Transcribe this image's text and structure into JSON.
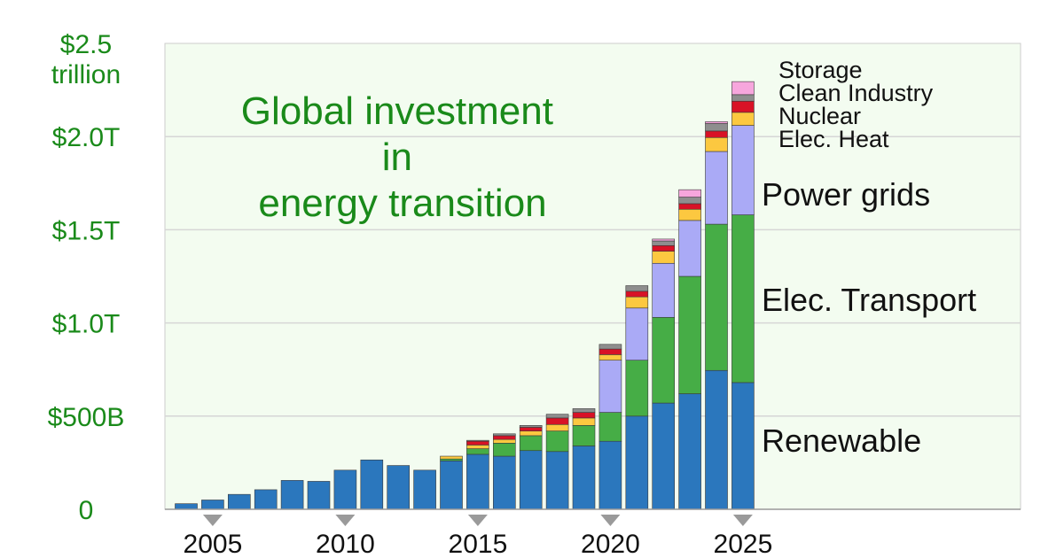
{
  "chart_data": {
    "type": "bar",
    "stacked": true,
    "title_lines": [
      "Global investment",
      "in",
      "energy transition"
    ],
    "ylabel": "",
    "xlabel": "",
    "ylim": [
      0,
      2500
    ],
    "y_unit": "billion USD",
    "grid": true,
    "y_ticks": [
      {
        "value": 0,
        "lines": [
          "0"
        ]
      },
      {
        "value": 500,
        "lines": [
          "$500B"
        ]
      },
      {
        "value": 1000,
        "lines": [
          "$1.0T"
        ]
      },
      {
        "value": 1500,
        "lines": [
          "$1.5T"
        ]
      },
      {
        "value": 2000,
        "lines": [
          "$2.0T"
        ]
      },
      {
        "value": 2500,
        "lines": [
          "$2.5",
          "trillion"
        ]
      }
    ],
    "x_tick_labels": [
      "2005",
      "2010",
      "2015",
      "2020",
      "2025"
    ],
    "categories": [
      "2004",
      "2005",
      "2006",
      "2007",
      "2008",
      "2009",
      "2010",
      "2011",
      "2012",
      "2013",
      "2014",
      "2015",
      "2016",
      "2017",
      "2018",
      "2019",
      "2020",
      "2021",
      "2022",
      "2023",
      "2024",
      "2025"
    ],
    "series": [
      {
        "name": "Renewable",
        "color": "#2b77bd",
        "values": [
          30,
          50,
          80,
          105,
          155,
          150,
          210,
          265,
          235,
          210,
          260,
          295,
          285,
          315,
          310,
          340,
          365,
          500,
          570,
          620,
          745,
          680
        ]
      },
      {
        "name": "Elec. Transport",
        "color": "#46ad46",
        "values": [
          0,
          0,
          0,
          0,
          0,
          0,
          0,
          0,
          0,
          0,
          10,
          30,
          70,
          80,
          110,
          110,
          155,
          300,
          460,
          630,
          785,
          900
        ]
      },
      {
        "name": "Power grids",
        "color": "#aaaaf6",
        "values": [
          0,
          0,
          0,
          0,
          0,
          0,
          0,
          0,
          0,
          0,
          0,
          0,
          0,
          0,
          0,
          0,
          280,
          280,
          290,
          300,
          390,
          480
        ]
      },
      {
        "name": "Elec. Heat",
        "color": "#fcc840",
        "values": [
          0,
          0,
          0,
          0,
          0,
          0,
          0,
          0,
          0,
          0,
          15,
          20,
          20,
          25,
          35,
          40,
          30,
          60,
          65,
          60,
          75,
          70
        ]
      },
      {
        "name": "Nuclear",
        "color": "#d81226",
        "values": [
          0,
          0,
          0,
          0,
          0,
          0,
          0,
          0,
          0,
          0,
          0,
          20,
          20,
          20,
          35,
          30,
          30,
          30,
          30,
          30,
          35,
          60
        ]
      },
      {
        "name": "Clean Industry",
        "color": "#8e8e8e",
        "values": [
          0,
          0,
          0,
          0,
          0,
          0,
          0,
          0,
          0,
          0,
          0,
          5,
          10,
          10,
          20,
          20,
          25,
          30,
          25,
          35,
          40,
          35
        ]
      },
      {
        "name": "Storage",
        "color": "#f7a6dd",
        "values": [
          0,
          0,
          0,
          0,
          0,
          0,
          0,
          0,
          0,
          0,
          0,
          0,
          0,
          0,
          0,
          0,
          0,
          0,
          10,
          40,
          10,
          70
        ]
      }
    ],
    "legend_small": [
      "Storage",
      "Clean Industry",
      "Nuclear",
      "Elec. Heat"
    ],
    "legend_big": [
      "Power grids",
      "Elec. Transport",
      "Renewable"
    ]
  }
}
